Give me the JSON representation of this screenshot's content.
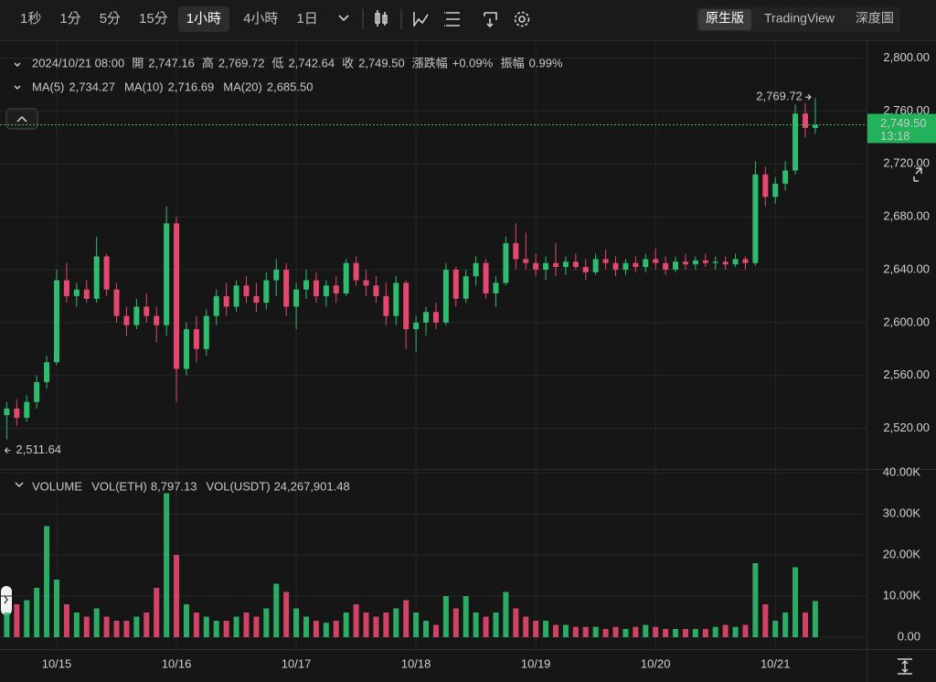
{
  "toolbar": {
    "intervals": [
      "1秒",
      "1分",
      "5分",
      "15分",
      "1小時",
      "4小時",
      "1日"
    ],
    "active_interval": 4,
    "views": [
      "原生版",
      "TradingView",
      "深度圖"
    ],
    "active_view": 0
  },
  "info": {
    "datetime": "2024/10/21 08:00",
    "fields": [
      {
        "label": "開",
        "value": "2,747.16"
      },
      {
        "label": "高",
        "value": "2,769.72"
      },
      {
        "label": "低",
        "value": "2,742.64"
      },
      {
        "label": "收",
        "value": "2,749.50"
      },
      {
        "label": "漲跌幅",
        "value": "+0.09%"
      },
      {
        "label": "振幅",
        "value": "0.99%"
      }
    ],
    "indicators": [
      {
        "name": "MA(5)",
        "value": "2,734.27",
        "color": "#f0a030"
      },
      {
        "name": "MA(10)",
        "value": "2,716.69",
        "color": "#e5487a"
      },
      {
        "name": "MA(20)",
        "value": "2,685.50",
        "color": "#3fa9e0"
      }
    ]
  },
  "chart_data": [
    {
      "type": "candlestick",
      "up_color": "#2ebd6e",
      "down_color": "#e5486e",
      "ylim": [
        2490,
        2810
      ],
      "yticks": [
        {
          "value": 2520,
          "label": "2,520.00"
        },
        {
          "value": 2560,
          "label": "2,560.00"
        },
        {
          "value": 2600,
          "label": "2,600.00"
        },
        {
          "value": 2640,
          "label": "2,640.00"
        },
        {
          "value": 2680,
          "label": "2,680.00"
        },
        {
          "value": 2720,
          "label": "2,720.00"
        },
        {
          "value": 2760,
          "label": "2,760.00"
        },
        {
          "value": 2800,
          "label": "2,800.00"
        }
      ],
      "xticks": [
        {
          "value": 5,
          "label": "10/15"
        },
        {
          "value": 17,
          "label": "10/16"
        },
        {
          "value": 29,
          "label": "10/17"
        },
        {
          "value": 41,
          "label": "10/18"
        },
        {
          "value": 53,
          "label": "10/19"
        },
        {
          "value": 65,
          "label": "10/20"
        },
        {
          "value": 77,
          "label": "10/21"
        }
      ],
      "grid": true,
      "high_label": "2,769.72",
      "low_label": "2,511.64",
      "last_price_label": "2,749.50",
      "countdown": "13:18",
      "candles": [
        [
          2530,
          2540,
          2511.64,
          2535
        ],
        [
          2535,
          2542,
          2522,
          2528
        ],
        [
          2528,
          2545,
          2525,
          2540
        ],
        [
          2540,
          2560,
          2535,
          2555
        ],
        [
          2555,
          2575,
          2550,
          2570
        ],
        [
          2570,
          2640,
          2568,
          2632
        ],
        [
          2632,
          2645,
          2615,
          2620
        ],
        [
          2620,
          2630,
          2612,
          2625
        ],
        [
          2625,
          2632,
          2615,
          2618
        ],
        [
          2618,
          2665,
          2615,
          2650
        ],
        [
          2650,
          2652,
          2620,
          2625
        ],
        [
          2625,
          2630,
          2600,
          2605
        ],
        [
          2605,
          2612,
          2590,
          2598
        ],
        [
          2598,
          2618,
          2595,
          2612
        ],
        [
          2612,
          2622,
          2600,
          2605
        ],
        [
          2605,
          2612,
          2585,
          2598
        ],
        [
          2598,
          2688,
          2590,
          2675
        ],
        [
          2675,
          2680,
          2540,
          2565
        ],
        [
          2565,
          2600,
          2560,
          2595
        ],
        [
          2595,
          2605,
          2570,
          2580
        ],
        [
          2580,
          2610,
          2575,
          2605
        ],
        [
          2605,
          2625,
          2598,
          2620
        ],
        [
          2620,
          2630,
          2605,
          2612
        ],
        [
          2612,
          2632,
          2608,
          2628
        ],
        [
          2628,
          2635,
          2615,
          2620
        ],
        [
          2620,
          2630,
          2608,
          2615
        ],
        [
          2615,
          2638,
          2610,
          2632
        ],
        [
          2632,
          2648,
          2620,
          2640
        ],
        [
          2640,
          2645,
          2605,
          2612
        ],
        [
          2612,
          2630,
          2595,
          2625
        ],
        [
          2625,
          2640,
          2618,
          2632
        ],
        [
          2632,
          2638,
          2615,
          2620
        ],
        [
          2620,
          2632,
          2612,
          2628
        ],
        [
          2628,
          2635,
          2615,
          2622
        ],
        [
          2622,
          2648,
          2620,
          2645
        ],
        [
          2645,
          2650,
          2628,
          2632
        ],
        [
          2632,
          2640,
          2620,
          2628
        ],
        [
          2628,
          2635,
          2615,
          2620
        ],
        [
          2620,
          2630,
          2598,
          2605
        ],
        [
          2605,
          2635,
          2598,
          2630
        ],
        [
          2630,
          2632,
          2580,
          2595
        ],
        [
          2595,
          2605,
          2578,
          2600
        ],
        [
          2600,
          2612,
          2590,
          2608
        ],
        [
          2608,
          2615,
          2595,
          2600
        ],
        [
          2600,
          2645,
          2598,
          2640
        ],
        [
          2640,
          2642,
          2612,
          2618
        ],
        [
          2618,
          2640,
          2615,
          2635
        ],
        [
          2635,
          2650,
          2628,
          2645
        ],
        [
          2645,
          2648,
          2618,
          2622
        ],
        [
          2622,
          2635,
          2612,
          2630
        ],
        [
          2630,
          2665,
          2628,
          2660
        ],
        [
          2660,
          2675,
          2640,
          2648
        ],
        [
          2648,
          2668,
          2640,
          2645
        ],
        [
          2645,
          2652,
          2635,
          2640
        ],
        [
          2640,
          2650,
          2632,
          2645
        ],
        [
          2645,
          2660,
          2635,
          2642
        ],
        [
          2642,
          2650,
          2636,
          2646
        ],
        [
          2646,
          2652,
          2640,
          2642
        ],
        [
          2642,
          2648,
          2632,
          2638
        ],
        [
          2638,
          2652,
          2636,
          2648
        ],
        [
          2648,
          2655,
          2640,
          2645
        ],
        [
          2645,
          2650,
          2635,
          2640
        ],
        [
          2640,
          2648,
          2636,
          2645
        ],
        [
          2645,
          2650,
          2638,
          2642
        ],
        [
          2642,
          2652,
          2638,
          2648
        ],
        [
          2648,
          2656,
          2640,
          2645
        ],
        [
          2645,
          2650,
          2636,
          2640
        ],
        [
          2640,
          2650,
          2638,
          2646
        ],
        [
          2646,
          2652,
          2640,
          2644
        ],
        [
          2644,
          2650,
          2640,
          2647
        ],
        [
          2647,
          2652,
          2642,
          2645
        ],
        [
          2645,
          2650,
          2640,
          2646
        ],
        [
          2646,
          2650,
          2640,
          2644
        ],
        [
          2644,
          2652,
          2642,
          2648
        ],
        [
          2648,
          2650,
          2640,
          2645
        ],
        [
          2645,
          2722,
          2643,
          2712
        ],
        [
          2712,
          2718,
          2688,
          2695
        ],
        [
          2695,
          2710,
          2690,
          2705
        ],
        [
          2705,
          2722,
          2700,
          2715
        ],
        [
          2715,
          2765,
          2712,
          2758
        ],
        [
          2758,
          2766,
          2740,
          2747.16
        ],
        [
          2747.16,
          2769.72,
          2742.64,
          2749.5
        ]
      ]
    },
    {
      "type": "bar",
      "title": "VOLUME",
      "series_labels": [
        {
          "name": "VOL(ETH)",
          "value": "8,797.13"
        },
        {
          "name": "VOL(USDT)",
          "value": "24,267,901.48"
        }
      ],
      "label_color": "#f0a030",
      "ylim": [
        0,
        40000
      ],
      "yticks": [
        {
          "value": 0,
          "label": "0.00"
        },
        {
          "value": 10000,
          "label": "10.00K"
        },
        {
          "value": 20000,
          "label": "20.00K"
        },
        {
          "value": 30000,
          "label": "30.00K"
        },
        {
          "value": 40000,
          "label": "40.00K"
        }
      ],
      "values": [
        6000,
        8000,
        9000,
        12000,
        27000,
        14000,
        8000,
        6000,
        5000,
        7000,
        5000,
        4000,
        4000,
        5000,
        6000,
        12000,
        35000,
        20000,
        8000,
        6000,
        5000,
        4000,
        4000,
        5000,
        6000,
        5000,
        7000,
        13000,
        11000,
        7000,
        5000,
        4000,
        3500,
        4000,
        6000,
        8000,
        6000,
        5000,
        6000,
        7000,
        9000,
        6000,
        4000,
        3000,
        10000,
        7000,
        10000,
        6000,
        5000,
        6000,
        11000,
        7000,
        5000,
        4000,
        4000,
        3000,
        3000,
        2500,
        2500,
        2500,
        2000,
        2500,
        2000,
        2500,
        3000,
        2500,
        2000,
        2000,
        2000,
        2000,
        2000,
        2500,
        3000,
        2500,
        3000,
        18000,
        8000,
        4000,
        6000,
        17000,
        6000,
        8797.13
      ]
    }
  ]
}
